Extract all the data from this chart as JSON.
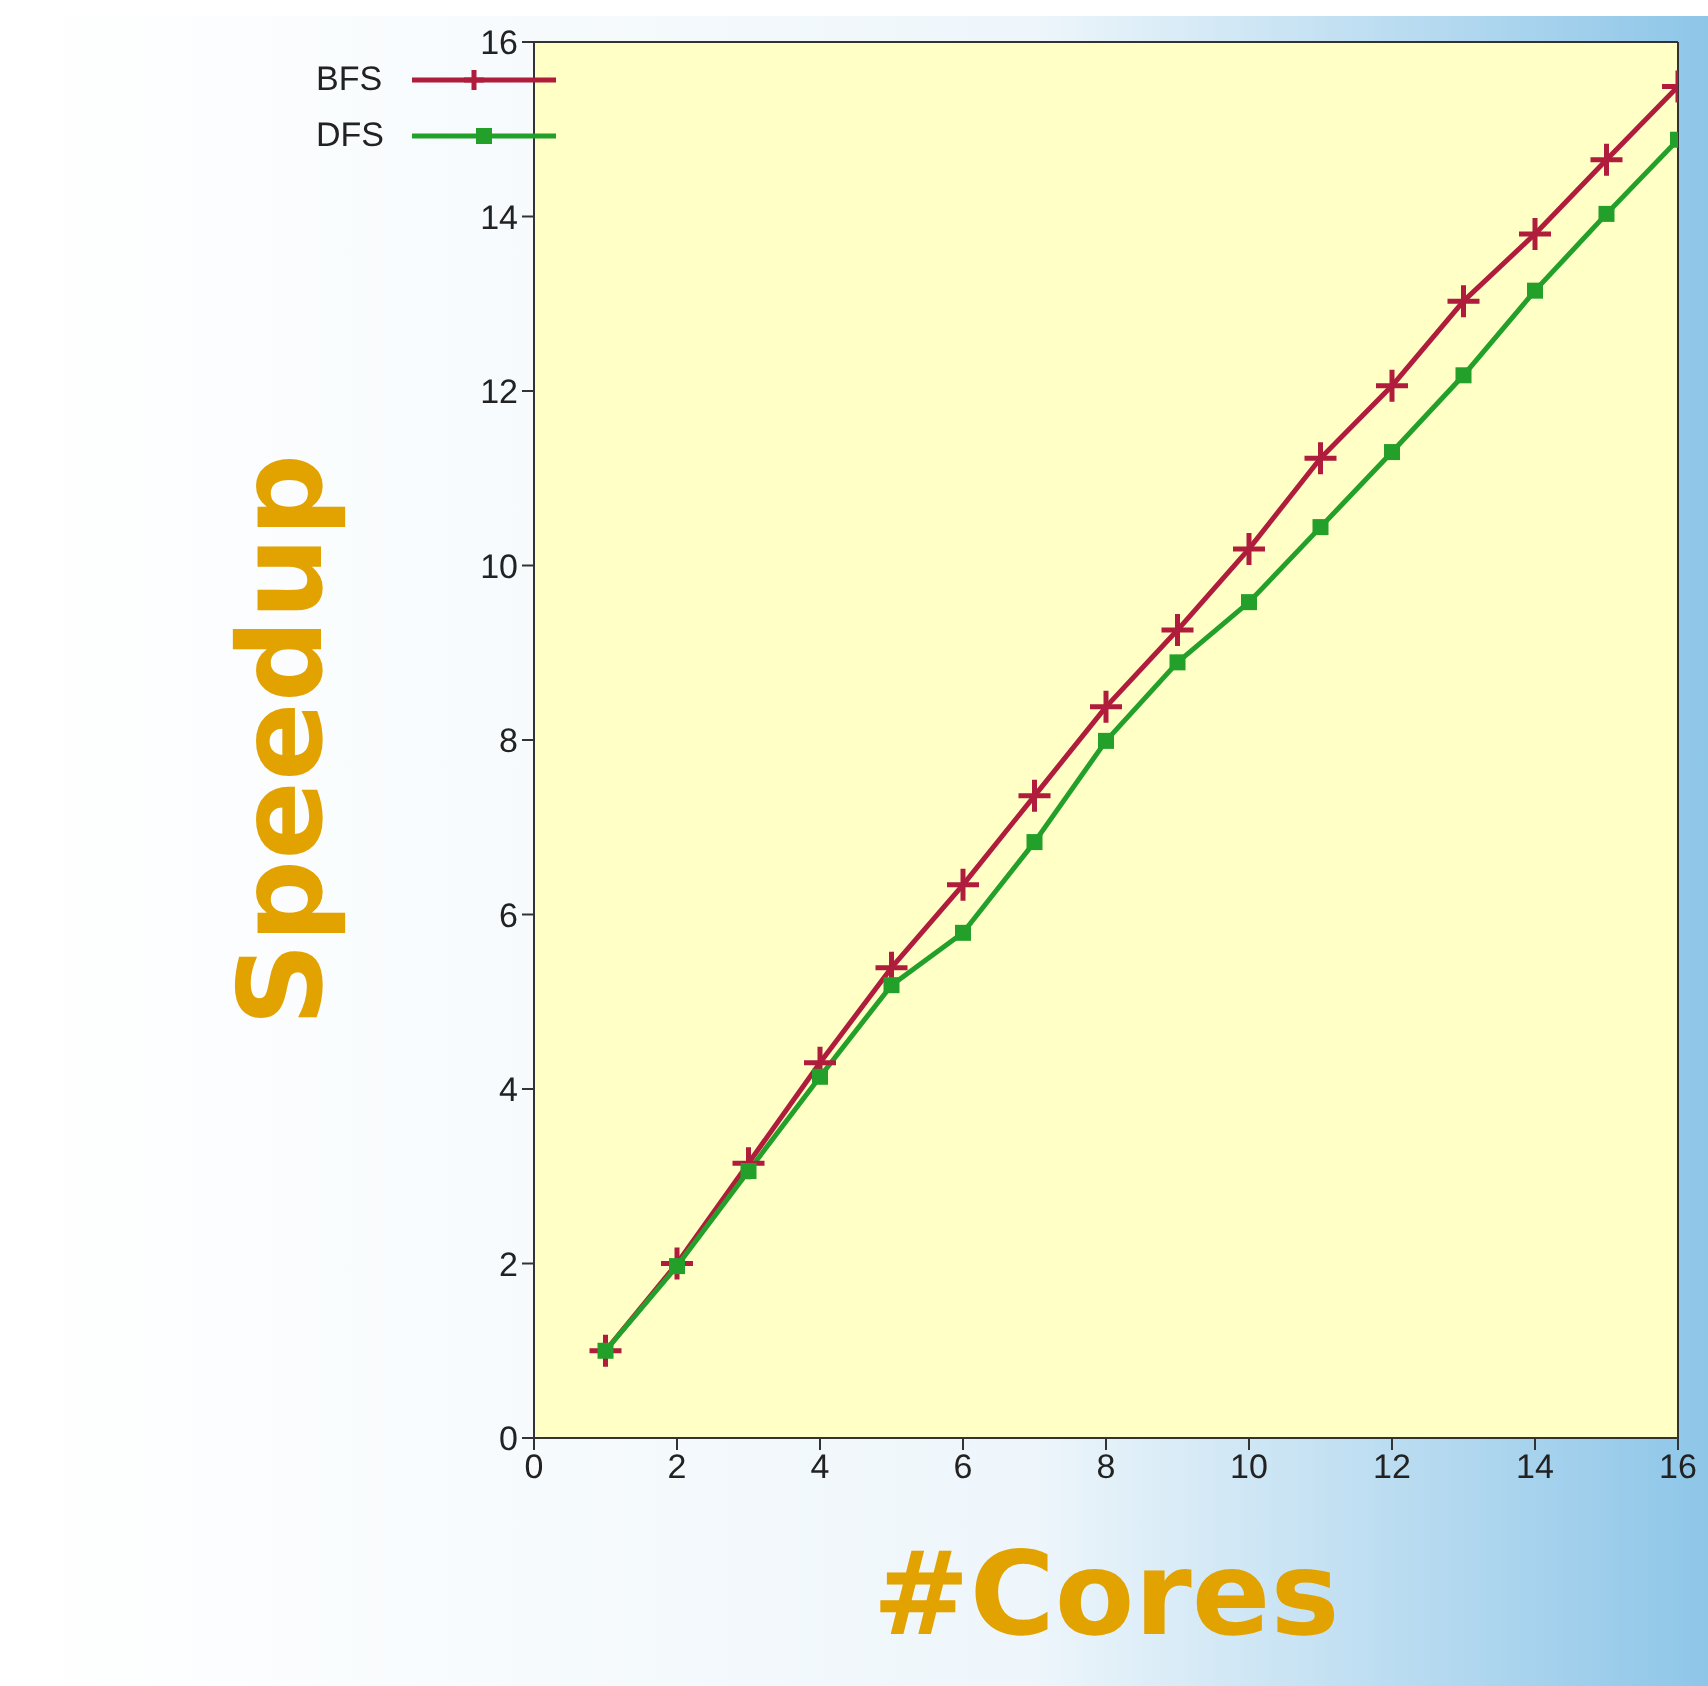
{
  "chart_data": {
    "type": "line",
    "xlabel": "#Cores",
    "ylabel": "Speedup",
    "x": [
      1,
      2,
      3,
      4,
      5,
      6,
      7,
      8,
      9,
      10,
      11,
      12,
      13,
      14,
      15,
      16
    ],
    "xlim": [
      0,
      16
    ],
    "xticks": [
      0,
      2,
      4,
      6,
      8,
      10,
      12,
      14,
      16
    ],
    "ylim": [
      0,
      16
    ],
    "yticks": [
      0,
      2,
      4,
      6,
      8,
      10,
      12,
      14,
      16
    ],
    "legend": "top left",
    "series": [
      {
        "name": "BFS",
        "color": "#b01c3c",
        "marker": "cross",
        "values": [
          1.0,
          2.0,
          3.15,
          4.3,
          5.39,
          6.34,
          7.36,
          8.38,
          9.26,
          10.19,
          11.23,
          12.06,
          13.03,
          13.8,
          14.65,
          15.49
        ]
      },
      {
        "name": "DFS",
        "color": "#22a02a",
        "marker": "square",
        "values": [
          1.0,
          1.97,
          3.06,
          4.14,
          5.19,
          5.79,
          6.83,
          7.99,
          8.89,
          9.58,
          10.44,
          11.3,
          12.18,
          13.15,
          14.03,
          14.88
        ]
      }
    ]
  }
}
